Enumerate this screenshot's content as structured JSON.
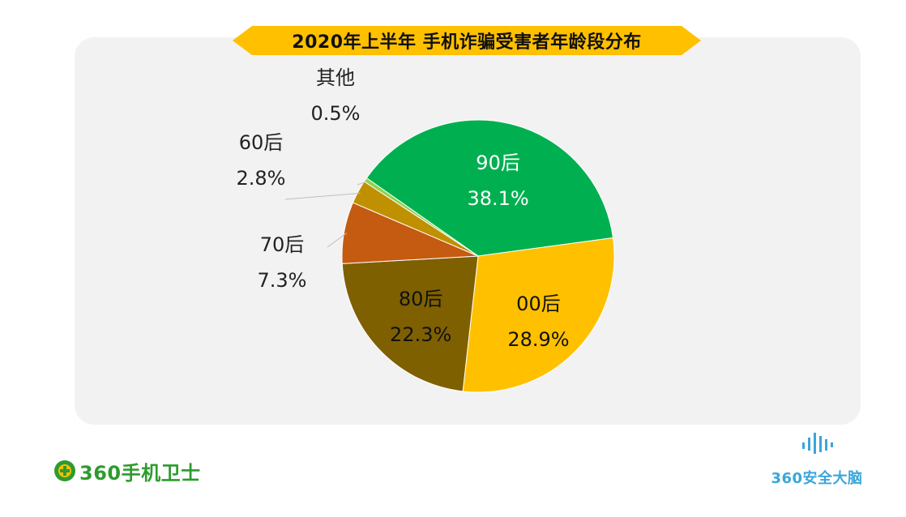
{
  "title": "2020年上半年 手机诈骗受害者年龄段分布",
  "chart_data": {
    "type": "pie",
    "title": "2020年上半年 手机诈骗受害者年龄段分布",
    "slices": [
      {
        "label": "90后",
        "value": 38.1,
        "value_label": "38.1%",
        "color": "#00b050"
      },
      {
        "label": "00后",
        "value": 28.9,
        "value_label": "28.9%",
        "color": "#ffc000"
      },
      {
        "label": "80后",
        "value": 22.3,
        "value_label": "22.3%",
        "color": "#7f6000"
      },
      {
        "label": "70后",
        "value": 7.3,
        "value_label": "7.3%",
        "color": "#c55a11"
      },
      {
        "label": "60后",
        "value": 2.8,
        "value_label": "2.8%",
        "color": "#bf9000"
      },
      {
        "label": "其他",
        "value": 0.5,
        "value_label": "0.5%",
        "color": "#92d050"
      }
    ]
  },
  "brand_left": {
    "text": "360手机卫士",
    "color": "#2e9b2e"
  },
  "brand_right": {
    "text": "360安全大脑",
    "color": "#3aa6d9"
  }
}
